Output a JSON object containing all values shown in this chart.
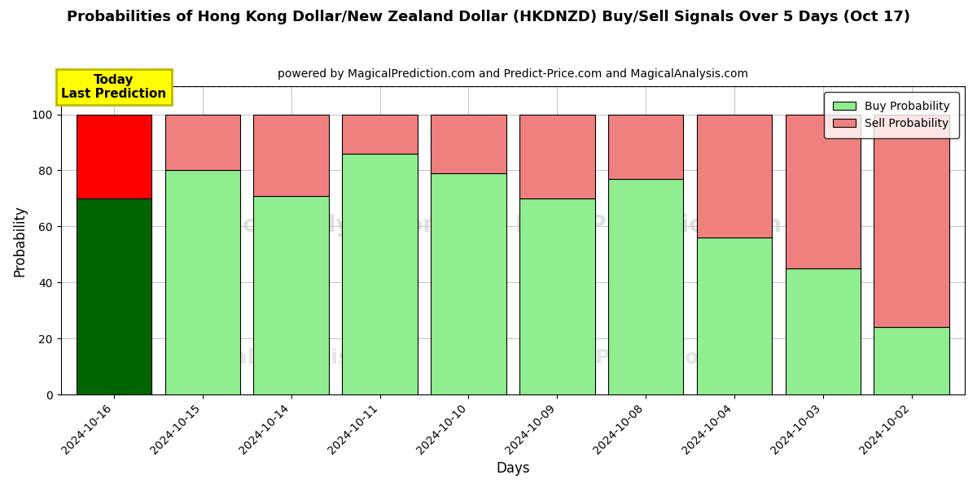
{
  "title": "Probabilities of Hong Kong Dollar/New Zealand Dollar (HKDNZD) Buy/Sell Signals Over 5 Days (Oct 17)",
  "subtitle": "powered by MagicalPrediction.com and Predict-Price.com and MagicalAnalysis.com",
  "xlabel": "Days",
  "ylabel": "Probability",
  "categories": [
    "2024-10-16",
    "2024-10-15",
    "2024-10-14",
    "2024-10-11",
    "2024-10-10",
    "2024-10-09",
    "2024-10-08",
    "2024-10-04",
    "2024-10-03",
    "2024-10-02"
  ],
  "buy_values": [
    70,
    80,
    71,
    86,
    79,
    70,
    77,
    56,
    45,
    24
  ],
  "sell_values": [
    30,
    20,
    29,
    14,
    21,
    30,
    23,
    44,
    55,
    76
  ],
  "buy_color_today": "#006400",
  "sell_color_today": "#FF0000",
  "buy_color_rest": "#90EE90",
  "sell_color_rest": "#F08080",
  "ylim": [
    0,
    110
  ],
  "yticks": [
    0,
    20,
    40,
    60,
    80,
    100
  ],
  "dashed_line_y": 110,
  "today_label": "Today\nLast Prediction",
  "today_bg_color": "#FFFF00",
  "today_border_color": "#BBBB00",
  "legend_buy_label": "Buy Probability",
  "legend_sell_label": "Sell Probability",
  "bar_width": 0.85,
  "background_color": "#ffffff",
  "grid_color": "#aaaaaa"
}
